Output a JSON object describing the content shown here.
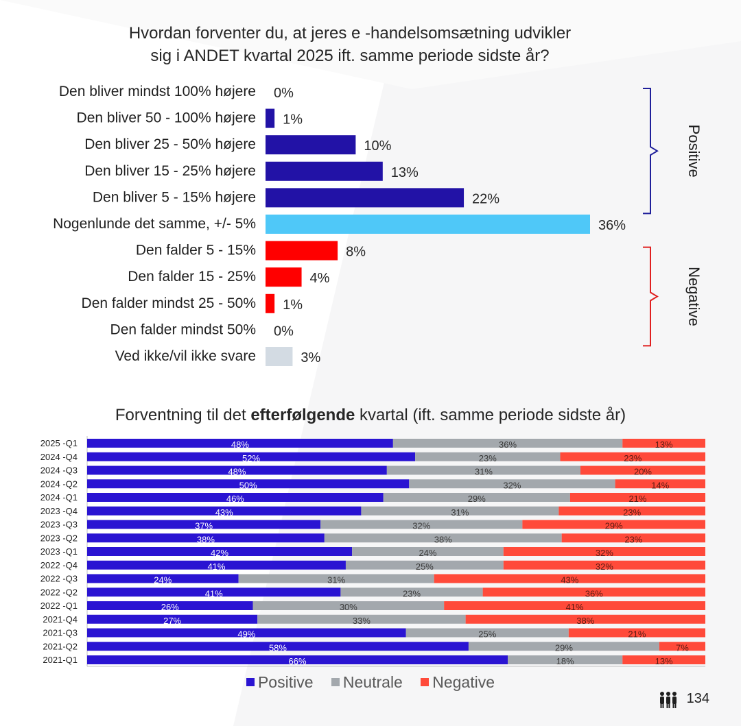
{
  "title": {
    "line1": "Hvordan forventer du, at jeres e -handelsomsætning udvikler",
    "line2": "sig i ANDET kvartal 2025 ift. samme periode sidste år?"
  },
  "subtitle": {
    "pre": "Forventning til det ",
    "bold": "efterfølgende",
    "post": " kvartal (ift. samme periode sidste år)"
  },
  "legend": {
    "positive": "Positive",
    "neutral": "Neutrale",
    "negative": "Negative"
  },
  "page_number": "134",
  "colors": {
    "positive_dark": "#2212a6",
    "same": "#4fc8f8",
    "negative_red": "#ff0000",
    "unknown": "#d3dbe3",
    "stack_positive": "#2a14d2",
    "stack_neutral": "#a3a8ad",
    "stack_negative": "#ff4a3a",
    "bracket_positive": "#1f1f9a",
    "bracket_negative": "#e02020"
  },
  "chart_data": [
    {
      "type": "bar",
      "orientation": "horizontal",
      "title": "Hvordan forventer du, at jeres e -handelsomsætning udvikler sig i ANDET kvartal 2025 ift. samme periode sidste år?",
      "categories": [
        "Den bliver mindst 100% højere",
        "Den bliver 50 - 100% højere",
        "Den bliver 25 - 50% højere",
        "Den bliver 15 - 25% højere",
        "Den bliver 5 - 15% højere",
        "Nogenlunde det samme, +/- 5%",
        "Den falder 5 - 15%",
        "Den falder 15 - 25%",
        "Den falder mindst 25 - 50%",
        "Den falder mindst 50%",
        "Ved ikke/vil ikke svare"
      ],
      "values": [
        0,
        1,
        10,
        13,
        22,
        36,
        8,
        4,
        1,
        0,
        3
      ],
      "value_labels": [
        "0%",
        "1%",
        "10%",
        "13%",
        "22%",
        "36%",
        "8%",
        "4%",
        "1%",
        "0%",
        "3%"
      ],
      "groups": [
        {
          "label": "Positive",
          "from": 0,
          "to": 4
        },
        {
          "label": "Negative",
          "from": 6,
          "to": 9
        }
      ],
      "xlim": [
        0,
        40
      ]
    },
    {
      "type": "bar",
      "orientation": "horizontal",
      "stacked": true,
      "title": "Forventning til det efterfølgende kvartal (ift. samme periode sidste år)",
      "categories": [
        "2025 -Q1",
        "2024 -Q4",
        "2024 -Q3",
        "2024 -Q2",
        "2024 -Q1",
        "2023 -Q4",
        "2023 -Q3",
        "2023 -Q2",
        "2023 -Q1",
        "2022 -Q4",
        "2022 -Q3",
        "2022 -Q2",
        "2022 -Q1",
        "2021-Q4",
        "2021-Q3",
        "2021-Q2",
        "2021-Q1"
      ],
      "series": [
        {
          "name": "Positive",
          "values": [
            48,
            52,
            48,
            50,
            46,
            43,
            37,
            38,
            42,
            41,
            24,
            41,
            26,
            27,
            49,
            58,
            66
          ]
        },
        {
          "name": "Neutrale",
          "values": [
            36,
            23,
            31,
            32,
            29,
            31,
            32,
            38,
            24,
            25,
            31,
            23,
            30,
            33,
            25,
            29,
            18
          ]
        },
        {
          "name": "Negative",
          "values": [
            13,
            23,
            20,
            14,
            21,
            23,
            29,
            23,
            32,
            32,
            43,
            36,
            41,
            38,
            21,
            7,
            13
          ]
        }
      ]
    }
  ]
}
